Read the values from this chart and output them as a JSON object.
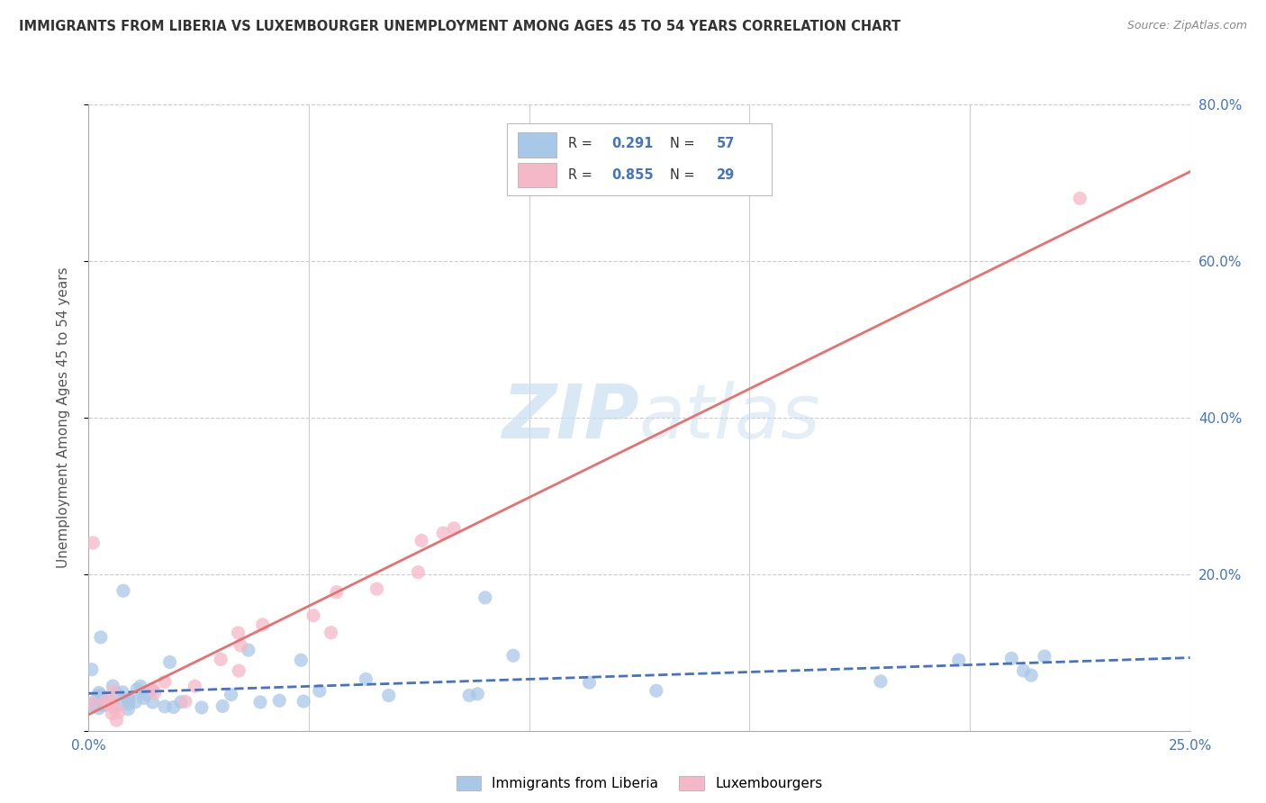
{
  "title": "IMMIGRANTS FROM LIBERIA VS LUXEMBOURGER UNEMPLOYMENT AMONG AGES 45 TO 54 YEARS CORRELATION CHART",
  "source": "Source: ZipAtlas.com",
  "ylabel_label": "Unemployment Among Ages 45 to 54 years",
  "xlim": [
    0,
    0.25
  ],
  "ylim": [
    0,
    0.8
  ],
  "ytick_positions": [
    0.0,
    0.2,
    0.4,
    0.6,
    0.8
  ],
  "ytick_labels": [
    "",
    "20.0%",
    "40.0%",
    "60.0%",
    "80.0%"
  ],
  "xtick_positions": [
    0.0,
    0.05,
    0.1,
    0.15,
    0.2,
    0.25
  ],
  "xtick_labels": [
    "0.0%",
    "",
    "",
    "",
    "",
    "25.0%"
  ],
  "legend_r1": "0.291",
  "legend_n1": "57",
  "legend_r2": "0.855",
  "legend_n2": "29",
  "color_blue": "#a8c8e8",
  "color_pink": "#f4b8c8",
  "color_blue_line": "#4472c4",
  "color_pink_line": "#e87070",
  "watermark_text": "ZIPatlas",
  "watermark_color": "#c8dff0"
}
